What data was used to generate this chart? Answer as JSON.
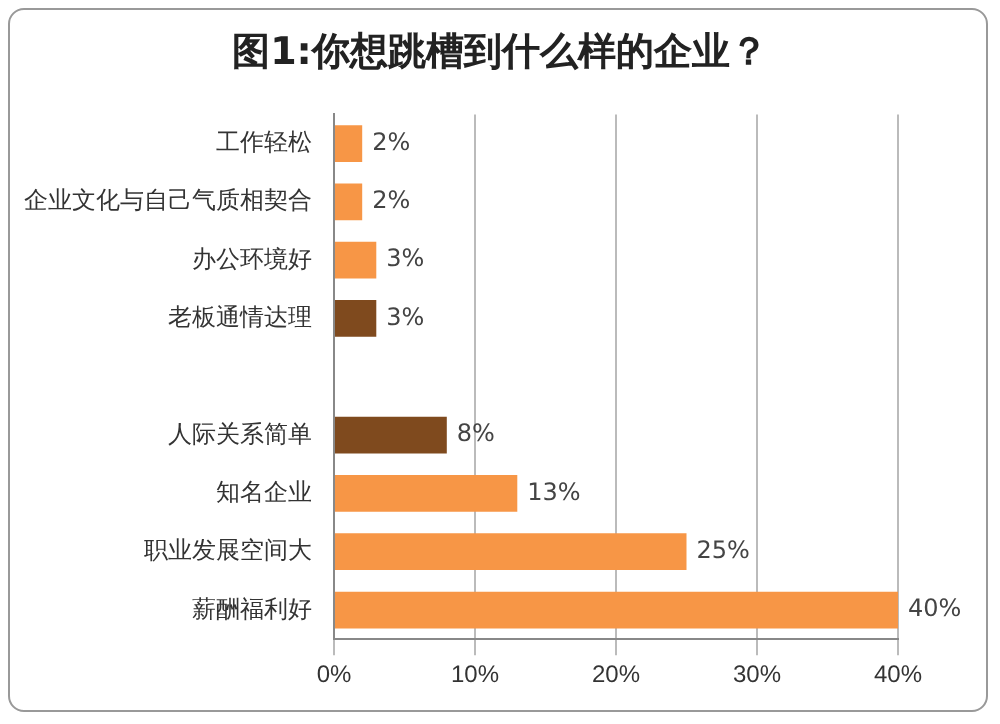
{
  "chart_data": {
    "type": "bar",
    "orientation": "horizontal",
    "title": "图1:你想跳槽到什么样的企业？",
    "categories": [
      "工作轻松",
      "企业文化与自己气质相契合",
      "办公环境好",
      "老板通情达理",
      null,
      "人际关系简单",
      "知名企业",
      "职业发展空间大",
      "薪酬福利好"
    ],
    "values": [
      2,
      2,
      3,
      3,
      null,
      8,
      13,
      25,
      40
    ],
    "colors": [
      "#f79646",
      "#f79646",
      "#f79646",
      "#7f4a1e",
      "#f79646",
      "#7f4a1e",
      "#f79646",
      "#f79646",
      "#f79646"
    ],
    "value_labels": [
      "2%",
      "2%",
      "3%",
      "3%",
      null,
      "8%",
      "13%",
      "25%",
      "40%"
    ],
    "xlim": [
      0,
      40
    ],
    "xticks": [
      {
        "value": 0,
        "label": "0%"
      },
      {
        "value": 10,
        "label": "10%"
      },
      {
        "value": 20,
        "label": "20%"
      },
      {
        "value": 30,
        "label": "30%"
      },
      {
        "value": 40,
        "label": "40%"
      }
    ],
    "grid": "x",
    "legend": false
  }
}
